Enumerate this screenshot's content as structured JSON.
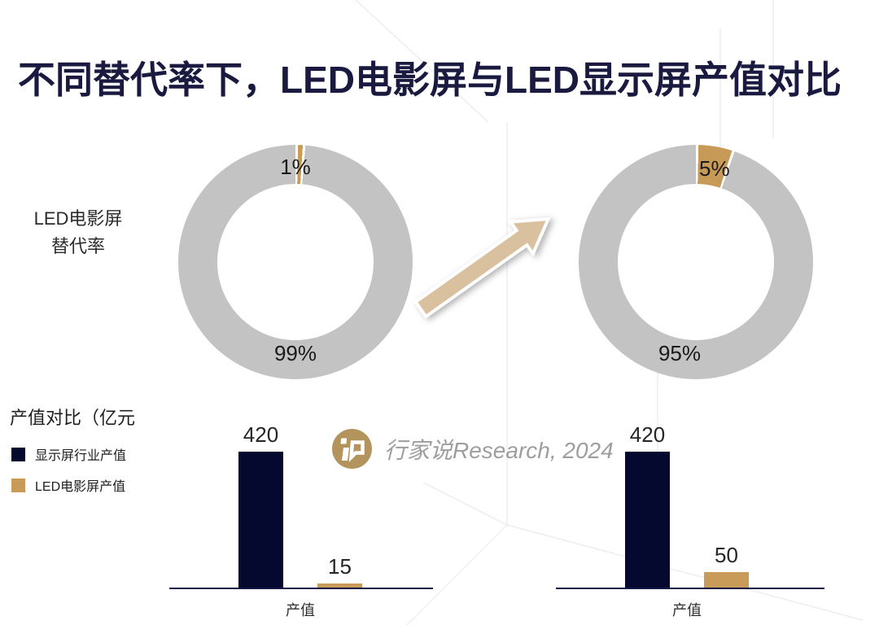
{
  "title": "不同替代率下，LED电影屏与LED显示屏产值对比",
  "donut_section": {
    "side_label_line1": "LED电影屏",
    "side_label_line2": "替代率"
  },
  "watermark": {
    "text": "行家说Research, 2024",
    "logo_color": "#b2945c"
  },
  "bar_section": {
    "heading": "产值对比（亿元",
    "legend": [
      {
        "label": "显示屏行业产值",
        "color": "#05082f"
      },
      {
        "label": "LED电影屏产值",
        "color": "#c99b59"
      }
    ]
  },
  "colors": {
    "title_navy": "#1a1a41",
    "bar_navy": "#05082f",
    "accent_tan": "#c99b59",
    "arrow_tan": "#d9c09e",
    "ring_gray": "#c3c3c3",
    "axis_navy": "#181847",
    "watermark_gray": "#9e9e9e"
  },
  "chart_data": [
    {
      "type": "pie",
      "variant": "donut",
      "context": "LED电影屏替代率 场景一",
      "gap_deg": 1.3,
      "slices": [
        {
          "label": "LED电影屏",
          "value": 1,
          "display": "1%",
          "color": "#c99b59"
        },
        {
          "label": "LED显示屏",
          "value": 99,
          "display": "99%",
          "color": "#c3c3c3"
        }
      ]
    },
    {
      "type": "pie",
      "variant": "donut",
      "context": "LED电影屏替代率 场景二",
      "gap_deg": 1.3,
      "slices": [
        {
          "label": "LED电影屏",
          "value": 5,
          "display": "5%",
          "color": "#c89a58"
        },
        {
          "label": "LED显示屏",
          "value": 95,
          "display": "95%",
          "color": "#c3c3c3"
        }
      ]
    },
    {
      "type": "bar",
      "context": "产值对比（亿元） 替代率1%",
      "categories": [
        "产值"
      ],
      "xlabel": "产值",
      "ylim": [
        0,
        450
      ],
      "series": [
        {
          "name": "显示屏行业产值",
          "values": [
            420
          ],
          "color": "#05082f"
        },
        {
          "name": "LED电影屏产值",
          "values": [
            15
          ],
          "color": "#c99b59"
        }
      ]
    },
    {
      "type": "bar",
      "context": "产值对比（亿元） 替代率5%",
      "categories": [
        "产值"
      ],
      "xlabel": "产值",
      "ylim": [
        0,
        450
      ],
      "series": [
        {
          "name": "显示屏行业产值",
          "values": [
            420
          ],
          "color": "#05082f"
        },
        {
          "name": "LED电影屏产值",
          "values": [
            50
          ],
          "color": "#c99b59"
        }
      ]
    }
  ]
}
